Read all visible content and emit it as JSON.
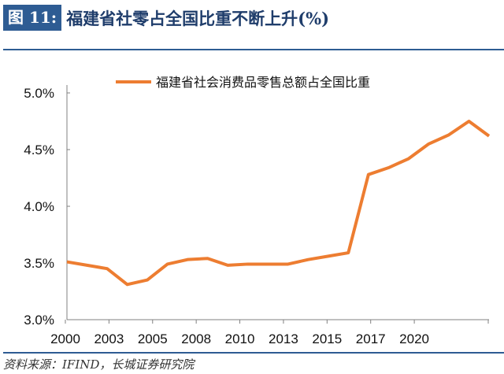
{
  "header": {
    "figure_label": "图 11:",
    "title": "福建省社零占全国比重不断上升(%)"
  },
  "source": "资料来源：IFIND，长城证券研究院",
  "colors": {
    "line": "#ed7d31",
    "accent": "#2e5c93"
  },
  "chart_data": {
    "type": "line",
    "title": "",
    "xlabel": "",
    "ylabel": "",
    "ylim": [
      3.0,
      5.0
    ],
    "yticks": [
      "3.0%",
      "3.5%",
      "4.0%",
      "4.5%",
      "5.0%"
    ],
    "xtick_labels": [
      "2000",
      "2003",
      "2005",
      "2008",
      "2010",
      "2013",
      "2015",
      "2017",
      "2020"
    ],
    "legend_position": "top-center",
    "x": [
      2000,
      2001,
      2002,
      2003,
      2004,
      2005,
      2006,
      2007,
      2008,
      2009,
      2010,
      2011,
      2012,
      2013,
      2014,
      2015,
      2016,
      2017,
      2018,
      2019,
      2020,
      2021
    ],
    "series": [
      {
        "name": "福建省社会消费品零售总额占全国比重",
        "values": [
          3.51,
          3.48,
          3.45,
          3.31,
          3.35,
          3.49,
          3.53,
          3.54,
          3.48,
          3.49,
          3.49,
          3.49,
          3.53,
          3.56,
          3.59,
          4.28,
          4.34,
          4.42,
          4.55,
          4.63,
          4.75,
          4.62
        ]
      }
    ]
  }
}
